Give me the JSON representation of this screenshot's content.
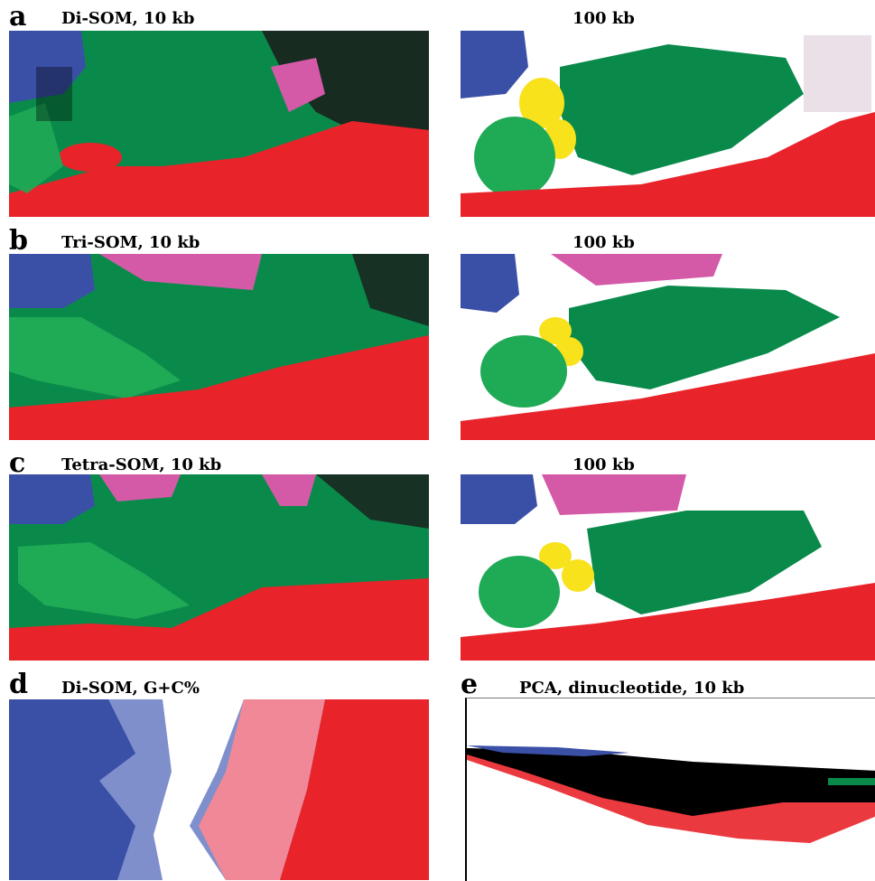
{
  "figure": {
    "rows": [
      {
        "letter": "a",
        "left_title": "Di-SOM, 10 kb",
        "right_title": "100 kb"
      },
      {
        "letter": "b",
        "left_title": "Tri-SOM, 10 kb",
        "right_title": "100 kb"
      },
      {
        "letter": "c",
        "left_title": "Tetra-SOM, 10 kb",
        "right_title": "100 kb"
      }
    ],
    "panel_d": {
      "letter": "d",
      "title": "Di-SOM, G+C%"
    },
    "panel_e": {
      "letter": "e",
      "title": "PCA, dinucleotide, 10 kb"
    }
  },
  "colors": {
    "red": "#e8232a",
    "green": "#0a8a4a",
    "light_green": "#1faa56",
    "blue": "#3a4fa6",
    "pink": "#d45aa8",
    "yellow": "#f8e21c",
    "light_blue": "#7f8fcc",
    "light_pink": "#f08898",
    "black": "#000000",
    "white": "#ffffff"
  }
}
